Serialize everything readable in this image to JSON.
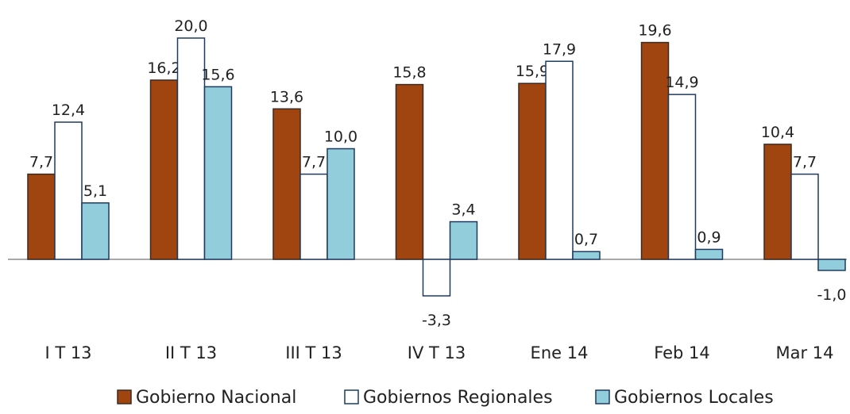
{
  "chart_data": {
    "type": "bar",
    "categories": [
      "I T 13",
      "II T 13",
      "III T 13",
      "IV T 13",
      "Ene 14",
      "Feb 14",
      "Mar 14"
    ],
    "series": [
      {
        "name": "Gobierno Nacional",
        "values": [
          7.7,
          16.2,
          13.6,
          15.8,
          15.9,
          19.6,
          10.4
        ],
        "labels": [
          "7,7",
          "16,2",
          "13,6",
          "15,8",
          "15,9",
          "19,6",
          "10,4"
        ],
        "color": "#A0450F",
        "stroke": "#3a2a22"
      },
      {
        "name": "Gobiernos Regionales",
        "values": [
          12.4,
          20.0,
          7.7,
          -3.3,
          17.9,
          14.9,
          7.7
        ],
        "labels": [
          "12,4",
          "20,0",
          "7,7",
          "-3,3",
          "17,9",
          "14,9",
          "7,7"
        ],
        "color": "#FFFFFF",
        "stroke": "#1f3a5f"
      },
      {
        "name": "Gobiernos Locales",
        "values": [
          5.1,
          15.6,
          10.0,
          3.4,
          0.7,
          0.9,
          -1.0
        ],
        "labels": [
          "5,1",
          "15,6",
          "10,0",
          "3,4",
          "0,7",
          "0,9",
          "-1,0"
        ],
        "color": "#92CDDC",
        "stroke": "#1f3a5f"
      }
    ],
    "legend_position": "bottom",
    "grid": false,
    "ylim": [
      -3.3,
      20.0
    ]
  }
}
